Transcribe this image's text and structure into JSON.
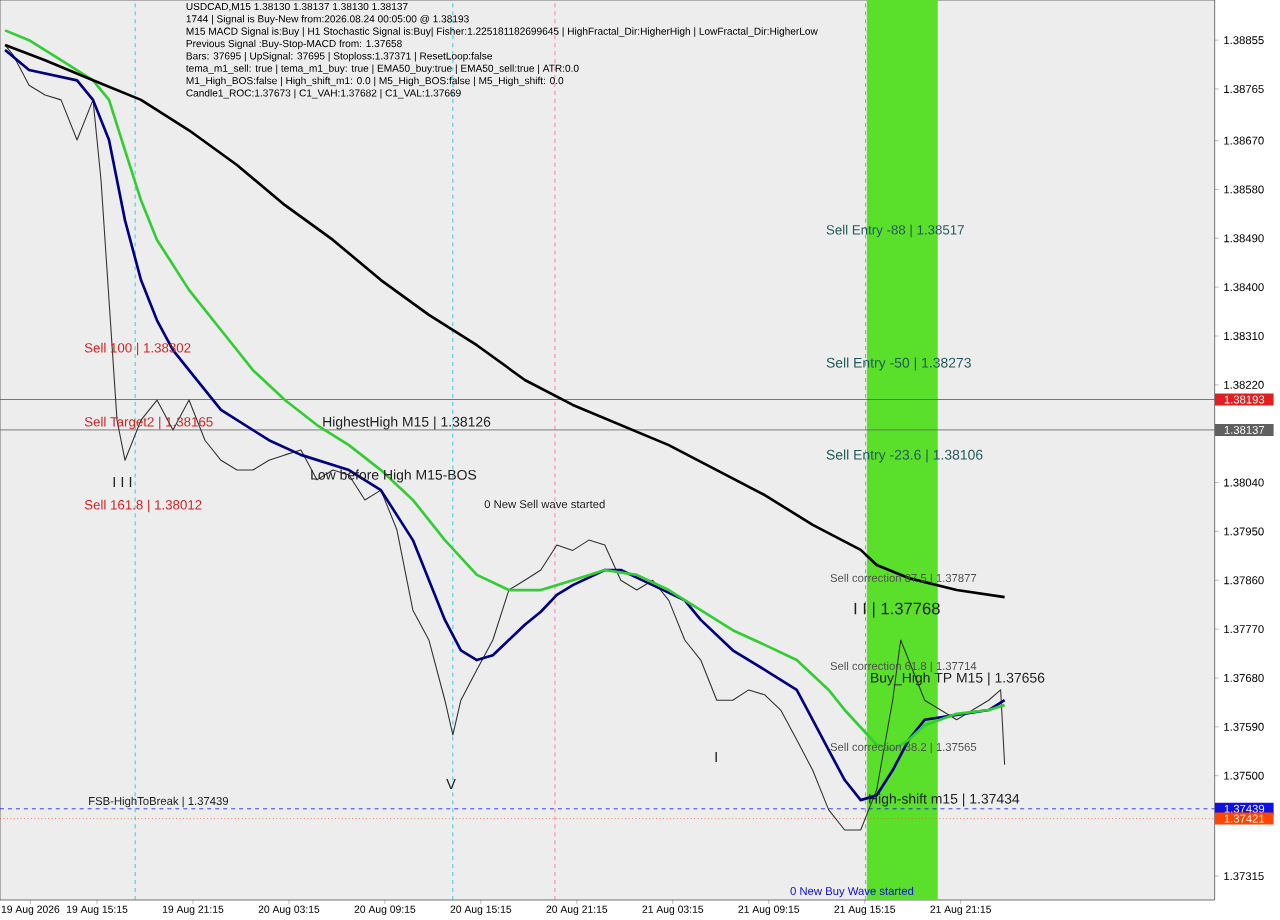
{
  "chart_data": {
    "type": "line",
    "title": "USDCAD,M15  1.38130 1.38137 1.38130 1.38137",
    "xlim": [
      "2026-08-19T09:11",
      "2026-08-22T13:08"
    ],
    "ylim": [
      1.37271,
      1.38929
    ],
    "xticks": [
      {
        "value": "2026-08-19T11:05",
        "label": "19 Aug 2026"
      },
      {
        "value": "2026-08-19T15:15",
        "label": "19 Aug 15:15"
      },
      {
        "value": "2026-08-19T21:15",
        "label": "19 Aug 21:15"
      },
      {
        "value": "2026-08-20T03:15",
        "label": "20 Aug 03:15"
      },
      {
        "value": "2026-08-20T09:15",
        "label": "20 Aug 09:15"
      },
      {
        "value": "2026-08-20T15:15",
        "label": "20 Aug 15:15"
      },
      {
        "value": "2026-08-20T21:15",
        "label": "20 Aug 21:15"
      },
      {
        "value": "2026-08-21T03:15",
        "label": "21 Aug 03:15"
      },
      {
        "value": "2026-08-21T09:15",
        "label": "21 Aug 09:15"
      },
      {
        "value": "2026-08-21T15:15",
        "label": "21 Aug 15:15"
      },
      {
        "value": "2026-08-21T21:15",
        "label": "21 Aug 21:15"
      }
    ],
    "yticks": [
      {
        "value": 1.37315,
        "label": "1.37315"
      },
      {
        "value": 1.375,
        "label": "1.37500"
      },
      {
        "value": 1.3759,
        "label": "1.37590"
      },
      {
        "value": 1.3768,
        "label": "1.37680"
      },
      {
        "value": 1.3777,
        "label": "1.37770"
      },
      {
        "value": 1.3786,
        "label": "1.37860"
      },
      {
        "value": 1.3795,
        "label": "1.37950"
      },
      {
        "value": 1.3804,
        "label": "1.38040"
      },
      {
        "value": 1.3822,
        "label": "1.38220"
      },
      {
        "value": 1.3831,
        "label": "1.38310"
      },
      {
        "value": 1.384,
        "label": "1.38400"
      },
      {
        "value": 1.3849,
        "label": "1.38490"
      },
      {
        "value": 1.3858,
        "label": "1.38580"
      },
      {
        "value": 1.3867,
        "label": "1.38670"
      },
      {
        "value": 1.38765,
        "label": "1.38765"
      },
      {
        "value": 1.38855,
        "label": "1.38855"
      }
    ],
    "series": [
      {
        "color": "#303030",
        "x": [
          "2026-08-19T09:30",
          "2026-08-19T10:00",
          "2026-08-19T11:00",
          "2026-08-19T12:00",
          "2026-08-19T13:00",
          "2026-08-19T14:00",
          "2026-08-19T15:00",
          "2026-08-19T15:30",
          "2026-08-19T16:00",
          "2026-08-19T16:30",
          "2026-08-19T17:00",
          "2026-08-19T18:00",
          "2026-08-19T19:00",
          "2026-08-19T20:00",
          "2026-08-19T21:00",
          "2026-08-19T22:00",
          "2026-08-19T23:00",
          "2026-08-20T00:00",
          "2026-08-20T01:00",
          "2026-08-20T02:00",
          "2026-08-20T03:00",
          "2026-08-20T04:00",
          "2026-08-20T05:00",
          "2026-08-20T06:00",
          "2026-08-20T07:00",
          "2026-08-20T08:00",
          "2026-08-20T09:00",
          "2026-08-20T10:00",
          "2026-08-20T11:00",
          "2026-08-20T12:00",
          "2026-08-20T13:00",
          "2026-08-20T13:30",
          "2026-08-20T14:00",
          "2026-08-20T15:00",
          "2026-08-20T16:00",
          "2026-08-20T17:00",
          "2026-08-20T18:00",
          "2026-08-20T19:00",
          "2026-08-20T20:00",
          "2026-08-20T21:00",
          "2026-08-20T22:00",
          "2026-08-20T23:00",
          "2026-08-21T00:00",
          "2026-08-21T01:00",
          "2026-08-21T02:00",
          "2026-08-21T03:00",
          "2026-08-21T04:00",
          "2026-08-21T05:00",
          "2026-08-21T06:00",
          "2026-08-21T07:00",
          "2026-08-21T08:00",
          "2026-08-21T09:00",
          "2026-08-21T10:00",
          "2026-08-21T11:00",
          "2026-08-21T12:00",
          "2026-08-21T13:00",
          "2026-08-21T14:00",
          "2026-08-21T15:00",
          "2026-08-21T15:30",
          "2026-08-21T16:00",
          "2026-08-21T17:00",
          "2026-08-21T17:30",
          "2026-08-21T18:00",
          "2026-08-21T19:00",
          "2026-08-21T20:00",
          "2026-08-21T21:00",
          "2026-08-21T22:00",
          "2026-08-21T23:00",
          "2026-08-21T23:45",
          "2026-08-22T00:00"
        ],
        "values": [
          1.38846,
          1.38828,
          1.38772,
          1.38754,
          1.38745,
          1.38671,
          1.38745,
          1.38597,
          1.38376,
          1.38155,
          1.38081,
          1.38155,
          1.38192,
          1.38137,
          1.38192,
          1.38118,
          1.38081,
          1.38063,
          1.38063,
          1.38081,
          1.38091,
          1.381,
          1.38045,
          1.38063,
          1.38054,
          1.38008,
          1.38026,
          1.37953,
          1.37805,
          1.3775,
          1.37639,
          1.37575,
          1.37639,
          1.37695,
          1.3775,
          1.37842,
          1.3786,
          1.37879,
          1.37925,
          1.37915,
          1.37934,
          1.37925,
          1.3786,
          1.37842,
          1.3786,
          1.37823,
          1.3775,
          1.37713,
          1.37639,
          1.37639,
          1.37658,
          1.37649,
          1.37621,
          1.37566,
          1.3751,
          1.37437,
          1.374,
          1.374,
          1.37437,
          1.37474,
          1.37639,
          1.3775,
          1.37713,
          1.37639,
          1.37621,
          1.37603,
          1.37621,
          1.37639,
          1.37658,
          1.3752
        ]
      },
      {
        "color": "#000080",
        "x": [
          "2026-08-19T09:30",
          "2026-08-19T11:00",
          "2026-08-19T14:00",
          "2026-08-19T15:00",
          "2026-08-19T16:00",
          "2026-08-19T17:00",
          "2026-08-19T18:00",
          "2026-08-19T19:00",
          "2026-08-19T20:00",
          "2026-08-19T21:00",
          "2026-08-19T23:00",
          "2026-08-20T02:00",
          "2026-08-20T04:00",
          "2026-08-20T07:00",
          "2026-08-20T09:00",
          "2026-08-20T11:00",
          "2026-08-20T13:00",
          "2026-08-20T14:00",
          "2026-08-20T15:00",
          "2026-08-20T16:00",
          "2026-08-20T17:00",
          "2026-08-20T18:00",
          "2026-08-20T19:00",
          "2026-08-20T20:00",
          "2026-08-20T21:00",
          "2026-08-20T23:00",
          "2026-08-21T00:00",
          "2026-08-21T02:00",
          "2026-08-21T04:00",
          "2026-08-21T05:00",
          "2026-08-21T07:00",
          "2026-08-21T09:00",
          "2026-08-21T11:00",
          "2026-08-21T12:00",
          "2026-08-21T13:00",
          "2026-08-21T14:00",
          "2026-08-21T15:00",
          "2026-08-21T16:00",
          "2026-08-21T17:00",
          "2026-08-21T18:00",
          "2026-08-21T19:00",
          "2026-08-21T21:00",
          "2026-08-21T23:00",
          "2026-08-22T00:00"
        ],
        "values": [
          1.38837,
          1.388,
          1.38781,
          1.38745,
          1.38671,
          1.38523,
          1.38413,
          1.38339,
          1.38284,
          1.38247,
          1.38174,
          1.38118,
          1.38091,
          1.38063,
          1.38026,
          1.37934,
          1.37787,
          1.37731,
          1.37713,
          1.37722,
          1.3775,
          1.37778,
          1.37802,
          1.37833,
          1.37851,
          1.37879,
          1.37879,
          1.37851,
          1.37823,
          1.37787,
          1.37731,
          1.37695,
          1.37658,
          1.37603,
          1.37547,
          1.37492,
          1.37455,
          1.37464,
          1.3751,
          1.37566,
          1.37603,
          1.37612,
          1.37621,
          1.37639
        ]
      },
      {
        "color": "#32cd32",
        "x": [
          "2026-08-19T09:30",
          "2026-08-19T11:00",
          "2026-08-19T13:00",
          "2026-08-19T15:00",
          "2026-08-19T16:00",
          "2026-08-19T17:00",
          "2026-08-19T18:00",
          "2026-08-19T19:00",
          "2026-08-19T21:00",
          "2026-08-19T23:00",
          "2026-08-20T01:00",
          "2026-08-20T03:00",
          "2026-08-20T05:00",
          "2026-08-20T07:00",
          "2026-08-20T09:00",
          "2026-08-20T11:00",
          "2026-08-20T13:00",
          "2026-08-20T15:00",
          "2026-08-20T17:00",
          "2026-08-20T19:00",
          "2026-08-20T21:00",
          "2026-08-20T23:00",
          "2026-08-21T01:00",
          "2026-08-21T03:00",
          "2026-08-21T05:00",
          "2026-08-21T07:00",
          "2026-08-21T09:00",
          "2026-08-21T11:00",
          "2026-08-21T13:00",
          "2026-08-21T14:00",
          "2026-08-21T16:00",
          "2026-08-21T17:00",
          "2026-08-21T18:00",
          "2026-08-21T19:00",
          "2026-08-21T21:00",
          "2026-08-21T23:00",
          "2026-08-22T00:00"
        ],
        "values": [
          1.38873,
          1.38855,
          1.38818,
          1.38781,
          1.38745,
          1.38652,
          1.3856,
          1.38487,
          1.38395,
          1.38321,
          1.38247,
          1.38192,
          1.38146,
          1.38109,
          1.38063,
          1.38008,
          1.37934,
          1.3787,
          1.37842,
          1.37842,
          1.3786,
          1.37879,
          1.3787,
          1.37842,
          1.37805,
          1.37768,
          1.37741,
          1.37713,
          1.37658,
          1.37621,
          1.37557,
          1.37547,
          1.37566,
          1.37593,
          1.37614,
          1.37621,
          1.3763
        ]
      },
      {
        "color": "#000000",
        "x": [
          "2026-08-19T09:30",
          "2026-08-19T12:00",
          "2026-08-19T15:00",
          "2026-08-19T18:00",
          "2026-08-19T21:00",
          "2026-08-20T00:00",
          "2026-08-20T03:00",
          "2026-08-20T06:00",
          "2026-08-20T09:00",
          "2026-08-20T12:00",
          "2026-08-20T15:00",
          "2026-08-20T18:00",
          "2026-08-20T21:00",
          "2026-08-21T00:00",
          "2026-08-21T03:00",
          "2026-08-21T06:00",
          "2026-08-21T09:00",
          "2026-08-21T12:00",
          "2026-08-21T15:00",
          "2026-08-21T16:00",
          "2026-08-21T18:00",
          "2026-08-21T21:00",
          "2026-08-22T00:00"
        ],
        "values": [
          1.38846,
          1.38818,
          1.38781,
          1.38745,
          1.38689,
          1.38625,
          1.38551,
          1.38487,
          1.38413,
          1.38349,
          1.38293,
          1.38229,
          1.38183,
          1.38146,
          1.38109,
          1.38063,
          1.38017,
          1.37962,
          1.37916,
          1.37888,
          1.37864,
          1.37842,
          1.37829
        ]
      }
    ],
    "bands": [
      {
        "axis": "x",
        "from": "2026-08-21T15:23",
        "to": "2026-08-21T19:49",
        "color": "#5ae02a"
      }
    ],
    "ref_lines": [
      {
        "axis": "y",
        "value": 1.38193,
        "label": "1.38193",
        "color": "#e02020",
        "line_style": "solid"
      },
      {
        "axis": "y",
        "value": 1.38137,
        "label": "1.38137",
        "color": "#606060",
        "line_style": "solid"
      },
      {
        "axis": "y",
        "value": 1.37439,
        "label": "1.37439",
        "color": "#1010e0",
        "line_style": "dashed"
      },
      {
        "axis": "y",
        "value": 1.37421,
        "label": "1.37421",
        "color": "#ff4500",
        "line_style": "dotted"
      },
      {
        "axis": "x",
        "value": "2026-08-19T17:38",
        "color": "#00c8d8",
        "line_style": "dashed"
      },
      {
        "axis": "x",
        "value": "2026-08-20T13:30",
        "color": "#00c8d8",
        "line_style": "dashed"
      },
      {
        "axis": "x",
        "value": "2026-08-20T19:53",
        "color": "#ff60a0",
        "line_style": "dashed"
      },
      {
        "axis": "x",
        "value": "2026-08-21T15:18",
        "color": "#00c8d8",
        "line_style": "dashed"
      }
    ],
    "annotations": [
      "1744 | Signal is Buy-New from:2026.08.24 00:05:00 @ 1.38193",
      "M15 MACD Signal is:Buy | H1 Stochastic Signal is:Buy| Fisher:1.225181182699645 | HighFractal_Dir:HigherHigh | LowFractal_Dir:HigherLow",
      "Previous Signal :Buy-Stop-MACD from: 1.37658",
      "Bars: 37695 | UpSignal: 37695 | Stoploss:1.37371 | ResetLoop:false",
      "tema_m1_sell: true | tema_m1_buy: true | EMA50_buy:true | EMA50_sell:true | ATR:0.0",
      "M1_High_BOS:false | High_shift_m1: 0.0 | M5_High_BOS:false | M5_High_shift: 0.0",
      "Candle1_ROC:1.37673 | C1_VAH:1.37682 | C1_VAL:1.37669",
      "Sell 100 | 1.38302",
      "Sell Target2 | 1.38165",
      "Sell 161.8 | 1.38012",
      "HighestHigh   M15 | 1.38126",
      "Low before High   M15-BOS",
      "0 New Sell wave started",
      "Sell Entry -88 | 1.38517",
      "Sell Entry -50 | 1.38273",
      "Sell Entry -23.6 | 1.38106",
      "Sell correction 87.5 | 1.37877",
      "I I | 1.37768",
      "Sell correction 61.8 | 1.37714",
      "Buy_High TP M15 | 1.37656",
      "Sell correction 38.2 | 1.37565",
      "High-shift m15 | 1.37434",
      "FSB-HighToBreak | 1.37439",
      "0 New Buy Wave started",
      "V",
      "I",
      "I I I"
    ]
  }
}
